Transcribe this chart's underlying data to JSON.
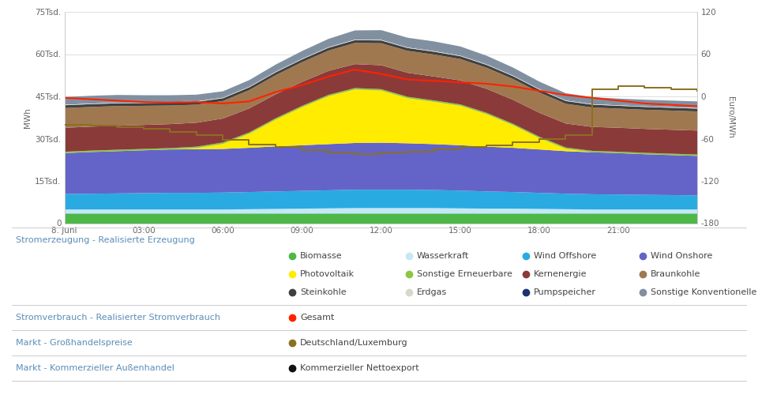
{
  "ylabel_left": "MWh",
  "ylabel_right": "Euro/MWh",
  "ylim_left": [
    0,
    75000
  ],
  "ylim_right": [
    -180,
    120
  ],
  "yticks_left": [
    0,
    15000,
    30000,
    45000,
    60000,
    75000
  ],
  "ytick_labels_left": [
    "0",
    "15Tsd.",
    "30Tsd.",
    "45Tsd.",
    "60Tsd.",
    "75Tsd."
  ],
  "yticks_right": [
    -180,
    -120,
    -60,
    0,
    60,
    120
  ],
  "ytick_labels_right": [
    "-180",
    "-120",
    "-60",
    "0",
    "60",
    "120"
  ],
  "hours": [
    0,
    1,
    2,
    3,
    4,
    5,
    6,
    7,
    8,
    9,
    10,
    11,
    12,
    13,
    14,
    15,
    16,
    17,
    18,
    19,
    20,
    21,
    22,
    23,
    24
  ],
  "biomasse": [
    3500,
    3500,
    3500,
    3500,
    3500,
    3500,
    3500,
    3500,
    3500,
    3500,
    3500,
    3500,
    3500,
    3500,
    3500,
    3500,
    3500,
    3500,
    3500,
    3500,
    3500,
    3500,
    3500,
    3500,
    3500
  ],
  "wasserkraft": [
    1500,
    1500,
    1500,
    1500,
    1500,
    1500,
    1500,
    1600,
    1700,
    1800,
    1900,
    2000,
    2000,
    2000,
    2000,
    1900,
    1800,
    1800,
    1700,
    1600,
    1500,
    1500,
    1500,
    1500,
    1500
  ],
  "wind_offshore": [
    5500,
    5600,
    5700,
    5800,
    5900,
    5900,
    6000,
    6100,
    6200,
    6300,
    6400,
    6500,
    6500,
    6500,
    6400,
    6300,
    6100,
    5900,
    5700,
    5500,
    5400,
    5300,
    5200,
    5100,
    5000
  ],
  "wind_onshore": [
    14500,
    14800,
    15000,
    15200,
    15400,
    15500,
    15500,
    15700,
    16000,
    16200,
    16400,
    16600,
    16700,
    16500,
    16300,
    16100,
    15900,
    15700,
    15400,
    15100,
    14900,
    14700,
    14400,
    14200,
    14000
  ],
  "photovoltaik": [
    0,
    0,
    0,
    0,
    0,
    400,
    1800,
    5000,
    9500,
    13500,
    17000,
    19000,
    18500,
    16000,
    15000,
    14000,
    11500,
    8000,
    4000,
    800,
    0,
    0,
    0,
    0,
    0
  ],
  "sonstige_erneu": [
    500,
    500,
    500,
    500,
    500,
    500,
    500,
    500,
    500,
    500,
    500,
    500,
    500,
    500,
    500,
    500,
    500,
    500,
    500,
    500,
    500,
    500,
    500,
    500,
    500
  ],
  "kernenergie": [
    8500,
    8500,
    8500,
    8500,
    8500,
    8500,
    8500,
    8500,
    8500,
    8500,
    8500,
    8500,
    8500,
    8500,
    8500,
    8500,
    8500,
    8500,
    8500,
    8500,
    8500,
    8500,
    8500,
    8500,
    8500
  ],
  "braunkohle": [
    7000,
    7000,
    7000,
    6800,
    6600,
    6400,
    6200,
    6500,
    6800,
    7000,
    7200,
    7500,
    7800,
    7800,
    7800,
    7600,
    7500,
    7400,
    7200,
    7000,
    6900,
    6800,
    6800,
    6800,
    6800
  ],
  "steinkohle": [
    1000,
    1000,
    1000,
    1000,
    1000,
    1000,
    1000,
    1000,
    1000,
    1000,
    1000,
    1000,
    1000,
    1000,
    1000,
    1000,
    1000,
    1000,
    1000,
    1000,
    1000,
    1000,
    1000,
    1000,
    1000
  ],
  "erdgas": [
    300,
    300,
    300,
    300,
    300,
    300,
    300,
    300,
    300,
    300,
    300,
    300,
    300,
    300,
    300,
    300,
    300,
    300,
    300,
    300,
    300,
    300,
    300,
    300,
    300
  ],
  "pumpspeicher": [
    150,
    150,
    150,
    150,
    150,
    150,
    150,
    150,
    150,
    150,
    150,
    150,
    150,
    150,
    150,
    150,
    150,
    150,
    150,
    150,
    150,
    150,
    150,
    150,
    150
  ],
  "sonst_konv": [
    2500,
    2500,
    2500,
    2300,
    2200,
    2100,
    2000,
    2100,
    2300,
    2500,
    2700,
    3000,
    3200,
    3200,
    3200,
    3000,
    2800,
    2600,
    2400,
    2300,
    2200,
    2100,
    2100,
    2100,
    2100
  ],
  "gesamt": [
    44500,
    44000,
    43500,
    43000,
    42800,
    43000,
    42500,
    43200,
    46500,
    49000,
    52000,
    54500,
    53000,
    51000,
    50500,
    50000,
    49500,
    48500,
    47000,
    45500,
    44500,
    43500,
    42500,
    42000,
    41500
  ],
  "preis": [
    -40,
    -42,
    -44,
    -46,
    -50,
    -55,
    -62,
    -68,
    -72,
    -76,
    -80,
    -82,
    -80,
    -78,
    -75,
    -72,
    -70,
    -65,
    -60,
    -55,
    10,
    15,
    12,
    10,
    8
  ],
  "colors": {
    "biomasse": "#4db848",
    "wasserkraft": "#c5e8f5",
    "wind_offshore": "#29abe2",
    "wind_onshore": "#6464c8",
    "photovoltaik": "#ffec00",
    "sonstige_erneu": "#8dc63f",
    "kernenergie": "#8b3a3a",
    "braunkohle": "#a07850",
    "steinkohle": "#404040",
    "erdgas": "#d8d8c8",
    "pumpspeicher": "#1e3070",
    "sonst_konv": "#8090a0",
    "gesamt": "#ff2200",
    "preis": "#8B7020"
  },
  "xtick_positions": [
    0,
    3,
    6,
    9,
    12,
    15,
    18,
    21,
    24
  ],
  "xtick_labels": [
    "8. Juni",
    "03:00",
    "06:00",
    "09:00",
    "12:00",
    "15:00",
    "18:00",
    "21:00",
    ""
  ],
  "header_color": "#5b8db8",
  "text_color": "#444444",
  "sep_color": "#cccccc",
  "legend_rows": [
    {
      "header": "Stromerzeugung - Realisierte Erzeugung",
      "items": [
        [
          "Biomasse",
          "#4db848"
        ],
        [
          "Wasserkraft",
          "#c5e8f5"
        ],
        [
          "Wind Offshore",
          "#29abe2"
        ],
        [
          "Wind Onshore",
          "#6464c8"
        ],
        [
          "Photovoltaik",
          "#ffec00"
        ],
        [
          "Sonstige Erneuerbare",
          "#8dc63f"
        ],
        [
          "Kernenergie",
          "#8b3a3a"
        ],
        [
          "Braunkohle",
          "#a07850"
        ],
        [
          "Steinkohle",
          "#404040"
        ],
        [
          "Erdgas",
          "#d8d8c8"
        ],
        [
          "Pumpspeicher",
          "#1e3070"
        ],
        [
          "Sonstige Konventionelle",
          "#8090a0"
        ]
      ]
    },
    {
      "header": "Stromverbrauch - Realisierter Stromverbrauch",
      "items": [
        [
          "Gesamt",
          "#ff2200"
        ]
      ]
    },
    {
      "header": "Markt - Großhandelspreise",
      "items": [
        [
          "Deutschland/Luxemburg",
          "#8B7020"
        ]
      ]
    },
    {
      "header": "Markt - Kommerzieller Außenhandel",
      "items": [
        [
          "Kommerzieller Nettoexport",
          "#111111"
        ]
      ]
    }
  ]
}
